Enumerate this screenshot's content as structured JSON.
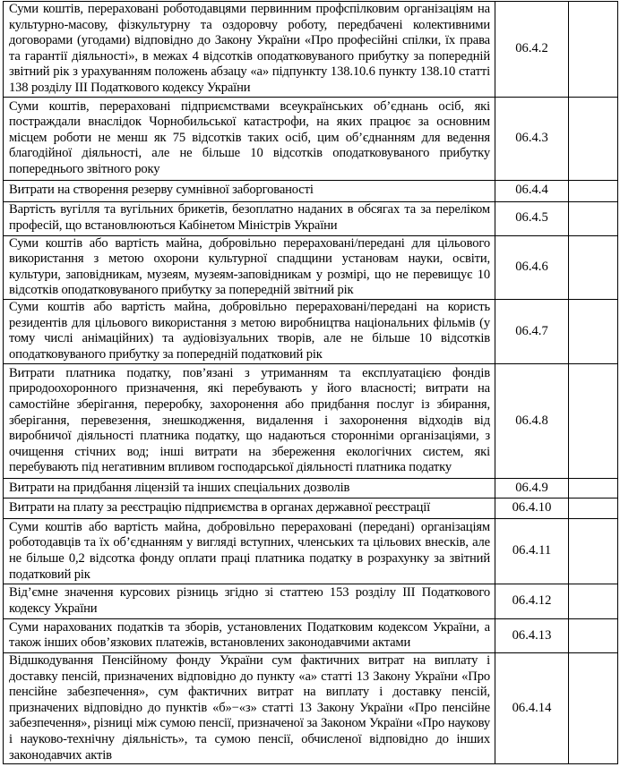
{
  "rows": [
    {
      "text": "Суми коштів, перераховані роботодавцями первинним профспілковим організаціям на культурно-масову, фізкультурну та оздоровчу роботу, передбачені колективними договорами (угодами) відповідно до Закону України «Про професійні спілки, їх права та гарантії діяльності», в межах 4 відсотків оподатковуваного прибутку за попередній звітний рік з урахуванням положень абзацу «а» підпункту 138.10.6 пункту 138.10 статті 138 розділу III Податкового кодексу України",
      "code": "06.4.2",
      "value": ""
    },
    {
      "text": "Суми коштів, перераховані підприємствами всеукраїнських об’єднань осіб, які постраждали внаслідок Чорнобильської катастрофи, на яких працює за основним місцем роботи не менш як 75 відсотків таких осіб, цим об’єднанням для ведення благодійної діяльності, але не більше 10 відсотків оподатковуваного прибутку попереднього звітного року",
      "code": "06.4.3",
      "value": ""
    },
    {
      "text": "Витрати на створення резерву сумнівної заборгованості",
      "code": "06.4.4",
      "value": ""
    },
    {
      "text": "Вартість вугілля та вугільних брикетів, безоплатно наданих в обсягах та за переліком професій, що встановлюються Кабінетом Міністрів України",
      "code": "06.4.5",
      "value": ""
    },
    {
      "text": "Суми коштів або вартість майна, добровільно перераховані/передані для цільового використання з метою охорони культурної спадщини установам науки, освіти, культури, заповідникам, музеям, музеям-заповідникам у розмірі, що не перевищує 10 відсотків оподатковуваного прибутку за попередній звітний рік",
      "code": "06.4.6",
      "value": ""
    },
    {
      "text": "Суми коштів або вартість майна, добровільно перераховані/передані на користь резидентів для цільового використання з метою виробництва національних фільмів (у тому числі анімаційних) та аудіовізуальних творів, але не більше 10 відсотків оподатковуваного прибутку за попередній податковий рік",
      "code": "06.4.7",
      "value": ""
    },
    {
      "text": "Витрати платника податку, пов’язані з утриманням та експлуатацією фондів природоохоронного призначення, які перебувають у його власності; витрати на самостійне зберігання, переробку, захоронення або придбання послуг із збирання, зберігання, перевезення, знешкодження, видалення і захоронення відходів від виробничої діяльності платника податку, що надаються сторонніми організаціями, з очищення стічних вод; інші витрати на збереження екологічних систем, які перебувають під негативним впливом господарської діяльності платника податку",
      "code": "06.4.8",
      "value": ""
    },
    {
      "text": "Витрати на придбання ліцензій та інших спеціальних дозволів",
      "code": "06.4.9",
      "value": ""
    },
    {
      "text": "Витрати на плату за реєстрацію підприємства в органах державної реєстрації",
      "code": "06.4.10",
      "value": ""
    },
    {
      "text": "Суми коштів або вартість майна, добровільно перераховані (передані) організаціям роботодавців та їх об’єднанням у вигляді вступних, членських та цільових внесків, але не більше 0,2 відсотка фонду оплати праці платника податку в розрахунку за звітний податковий рік",
      "code": "06.4.11",
      "value": ""
    },
    {
      "text": "Від’ємне значення курсових різниць згідно зі статтею 153 розділу III Податкового кодексу України",
      "code": "06.4.12",
      "value": ""
    },
    {
      "text": "Суми нарахованих податків та зборів, установлених Податковим кодексом України, а також інших обов’язкових платежів, встановлених законодавчими актами",
      "code": "06.4.13",
      "value": ""
    },
    {
      "text": "Відшкодування Пенсійному фонду України сум фактичних витрат на виплату і доставку пенсій, призначених відповідно до пункту «а» статті 13 Закону України «Про пенсійне забезпечення», сум фактичних витрат на виплату і доставку пенсій, призначених відповідно до пунктів «б»−«з» статті 13 Закону України «Про пенсійне забезпечення», різниці між сумою пенсії, призначеної за Законом України «Про наукову і науково-технічну діяльність», та сумою пенсії, обчисленої відповідно до інших законодавчих актів",
      "code": "06.4.14",
      "value": ""
    }
  ]
}
